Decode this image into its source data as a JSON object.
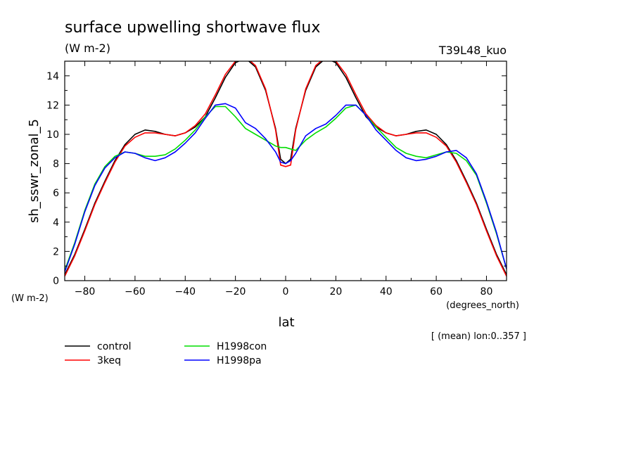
{
  "chart_data": {
    "type": "line",
    "title": "surface upwelling shortwave flux",
    "units": "(W m-2)",
    "run_label": "T39L48_kuo",
    "ylabel": "sh_sswr_zonal_5",
    "y_units": "(W m-2)",
    "xlabel": "lat",
    "x_units": "(degrees_north)",
    "note": "[ (mean) lon:0..357 ]",
    "xlim": [
      -88,
      88
    ],
    "ylim": [
      0,
      15
    ],
    "x_ticks": [
      -80,
      -60,
      -40,
      -20,
      0,
      20,
      40,
      60,
      80
    ],
    "y_ticks": [
      0,
      2,
      4,
      6,
      8,
      10,
      12,
      14
    ],
    "grid": false,
    "legend_position": "bottom-left",
    "x": [
      -88,
      -84,
      -80,
      -76,
      -72,
      -68,
      -64,
      -60,
      -56,
      -52,
      -48,
      -44,
      -40,
      -36,
      -32,
      -28,
      -24,
      -20,
      -16,
      -12,
      -8,
      -4,
      -2,
      0,
      2,
      4,
      8,
      12,
      16,
      20,
      24,
      28,
      32,
      36,
      40,
      44,
      48,
      52,
      56,
      60,
      64,
      68,
      72,
      76,
      80,
      84,
      88
    ],
    "series": [
      {
        "name": "control",
        "color": "#000000",
        "values": [
          0.4,
          1.8,
          3.5,
          5.3,
          6.8,
          8.2,
          9.3,
          10.0,
          10.3,
          10.2,
          10.0,
          9.9,
          10.1,
          10.5,
          11.2,
          12.5,
          13.9,
          14.9,
          15.2,
          14.6,
          13.0,
          10.4,
          8.3,
          8.0,
          8.3,
          10.4,
          13.0,
          14.6,
          15.2,
          14.9,
          13.9,
          12.5,
          11.2,
          10.5,
          10.1,
          9.9,
          10.0,
          10.2,
          10.3,
          10.0,
          9.3,
          8.2,
          6.8,
          5.3,
          3.5,
          1.8,
          0.4
        ]
      },
      {
        "name": "3keq",
        "color": "#ff0000",
        "values": [
          0.3,
          1.7,
          3.4,
          5.2,
          6.7,
          8.1,
          9.2,
          9.8,
          10.1,
          10.1,
          10.0,
          9.9,
          10.1,
          10.6,
          11.4,
          12.7,
          14.1,
          15.0,
          15.3,
          14.7,
          13.1,
          10.3,
          7.9,
          7.8,
          7.9,
          10.3,
          13.1,
          14.7,
          15.3,
          15.0,
          14.1,
          12.7,
          11.4,
          10.6,
          10.1,
          9.9,
          10.0,
          10.1,
          10.1,
          9.8,
          9.2,
          8.1,
          6.7,
          5.2,
          3.4,
          1.7,
          0.3
        ]
      },
      {
        "name": "H1998con",
        "color": "#00dd00",
        "values": [
          0.7,
          2.6,
          4.8,
          6.6,
          7.8,
          8.5,
          8.8,
          8.7,
          8.5,
          8.5,
          8.6,
          9.0,
          9.6,
          10.3,
          11.2,
          11.9,
          11.9,
          11.2,
          10.4,
          10.0,
          9.6,
          9.2,
          9.1,
          9.1,
          9.0,
          8.9,
          9.6,
          10.1,
          10.5,
          11.1,
          11.8,
          12.0,
          11.3,
          10.5,
          9.8,
          9.1,
          8.7,
          8.5,
          8.4,
          8.6,
          8.8,
          8.7,
          8.2,
          7.2,
          5.3,
          3.2,
          0.8
        ]
      },
      {
        "name": "H1998pa",
        "color": "#0000ff",
        "values": [
          0.6,
          2.5,
          4.7,
          6.5,
          7.7,
          8.4,
          8.8,
          8.7,
          8.4,
          8.2,
          8.4,
          8.8,
          9.4,
          10.1,
          11.1,
          12.0,
          12.1,
          11.8,
          10.8,
          10.4,
          9.7,
          8.8,
          8.1,
          8.0,
          8.2,
          8.7,
          9.9,
          10.4,
          10.7,
          11.3,
          12.0,
          12.0,
          11.3,
          10.3,
          9.6,
          8.9,
          8.4,
          8.2,
          8.3,
          8.5,
          8.8,
          8.9,
          8.4,
          7.3,
          5.4,
          3.3,
          0.8
        ]
      }
    ]
  }
}
